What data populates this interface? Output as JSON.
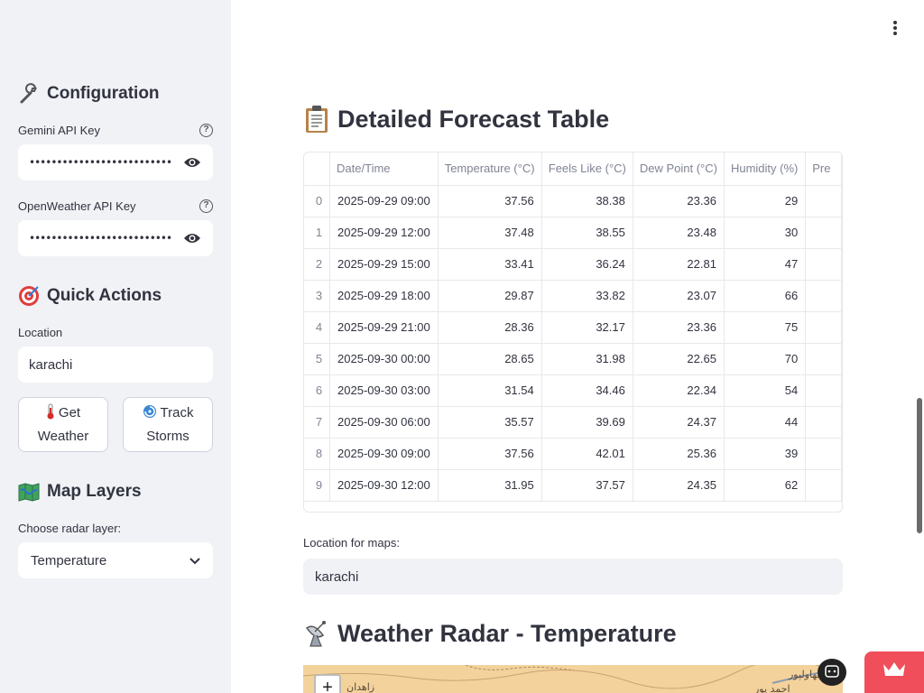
{
  "sidebar": {
    "configuration": {
      "heading": "Configuration",
      "gemini_label": "Gemini API Key",
      "gemini_value": "••••••••••••••••••••••••••••••••••••",
      "openweather_label": "OpenWeather API Key",
      "openweather_value": "••••••••••••••••••••••••••••••••••••"
    },
    "quick_actions": {
      "heading": "Quick Actions",
      "location_label": "Location",
      "location_value": "karachi",
      "get_weather_line1": "Get",
      "get_weather_line2": "Weather",
      "track_storms_line1": "Track",
      "track_storms_line2": "Storms"
    },
    "map_layers": {
      "heading": "Map Layers",
      "radar_label": "Choose radar layer:",
      "radar_value": "Temperature"
    }
  },
  "main": {
    "table_title": "Detailed Forecast Table",
    "columns": [
      "",
      "Date/Time",
      "Temperature (°C)",
      "Feels Like (°C)",
      "Dew Point (°C)",
      "Humidity (%)",
      "Pre"
    ],
    "rows": [
      [
        "0",
        "2025-09-29 09:00",
        "37.56",
        "38.38",
        "23.36",
        "29",
        ""
      ],
      [
        "1",
        "2025-09-29 12:00",
        "37.48",
        "38.55",
        "23.48",
        "30",
        ""
      ],
      [
        "2",
        "2025-09-29 15:00",
        "33.41",
        "36.24",
        "22.81",
        "47",
        ""
      ],
      [
        "3",
        "2025-09-29 18:00",
        "29.87",
        "33.82",
        "23.07",
        "66",
        ""
      ],
      [
        "4",
        "2025-09-29 21:00",
        "28.36",
        "32.17",
        "23.36",
        "75",
        ""
      ],
      [
        "5",
        "2025-09-30 00:00",
        "28.65",
        "31.98",
        "22.65",
        "70",
        ""
      ],
      [
        "6",
        "2025-09-30 03:00",
        "31.54",
        "34.46",
        "22.34",
        "54",
        ""
      ],
      [
        "7",
        "2025-09-30 06:00",
        "35.57",
        "39.69",
        "24.37",
        "44",
        ""
      ],
      [
        "8",
        "2025-09-30 09:00",
        "37.56",
        "42.01",
        "25.36",
        "39",
        ""
      ],
      [
        "9",
        "2025-09-30 12:00",
        "31.95",
        "37.57",
        "24.35",
        "62",
        ""
      ]
    ],
    "maps_location_label": "Location for maps:",
    "maps_location_value": "karachi",
    "radar_title": "Weather Radar - Temperature",
    "map": {
      "zoom_in": "+",
      "label_zahedan": "زاهدان",
      "label_bahawalpur": "بهاولپور",
      "label_ahmadpur": "احمد پور"
    }
  },
  "colors": {
    "sidebar_bg": "#f0f2f6",
    "text": "#31333f",
    "muted": "#808495",
    "accent_red": "#f04e5a",
    "map_bg": "#f3d29c"
  }
}
